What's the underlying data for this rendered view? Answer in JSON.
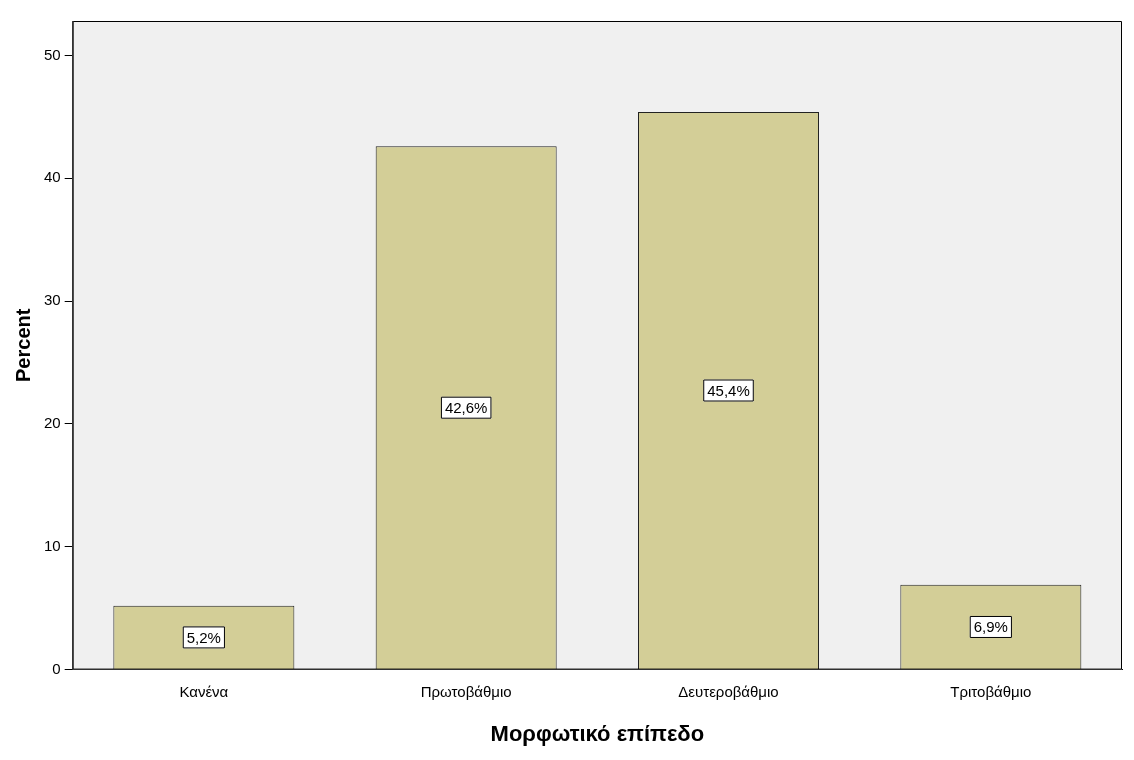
{
  "chart_data": {
    "type": "bar",
    "xlabel": "Μορφωτικό επίπεδο",
    "ylabel": "Percent",
    "categories": [
      "Κανένα",
      "Πρωτοβάθμιο",
      "Δευτεροβάθμιο",
      "Τριτοβάθμιο"
    ],
    "values": [
      5.2,
      42.6,
      45.4,
      6.9
    ],
    "color": "#d3ce97",
    "value_labels": [
      "5,2%",
      "42,6%",
      "45,4%",
      "6,9%"
    ],
    "ylim": [
      0,
      52.8
    ],
    "yticks": [
      0,
      10,
      20,
      30,
      40,
      50
    ],
    "grid": false,
    "legend": false
  }
}
